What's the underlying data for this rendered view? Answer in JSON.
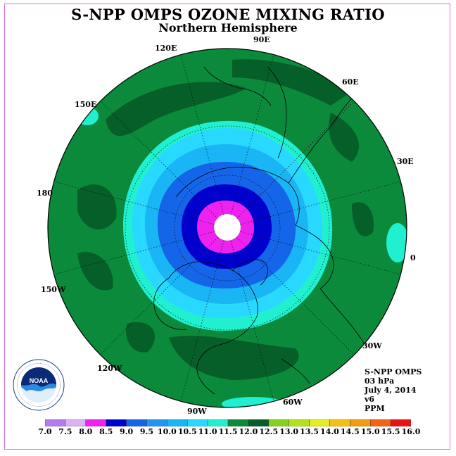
{
  "header": {
    "title": "S-NPP OMPS OZONE MIXING RATIO",
    "subtitle": "Northern Hemisphere"
  },
  "longitudes": [
    "90E",
    "60E",
    "30E",
    "0",
    "30W",
    "60W",
    "90W",
    "120W",
    "150W",
    "180",
    "150E",
    "120E"
  ],
  "info": {
    "instrument": "S-NPP OMPS",
    "level": "03 hPa",
    "date": "July 4, 2014",
    "version": "v6",
    "units": "PPM"
  },
  "logo": {
    "icon": "noaa-logo-icon",
    "text": "NOAA"
  },
  "colorbar": {
    "labels": [
      "7.0",
      "7.5",
      "8.0",
      "8.5",
      "9.0",
      "9.5",
      "10.0",
      "10.5",
      "11.0",
      "11.5",
      "12.0",
      "12.5",
      "13.0",
      "13.5",
      "14.0",
      "14.5",
      "15.0",
      "15.5",
      "16.0"
    ],
    "colors": [
      "#b57cf0",
      "#dcb0f2",
      "#ee22ee",
      "#0000cc",
      "#1565e8",
      "#2195f0",
      "#19b5f5",
      "#29d8ff",
      "#20f0d0",
      "#0c8a3c",
      "#065e28",
      "#88d020",
      "#b5e020",
      "#e6ec22",
      "#f2c012",
      "#f29a12",
      "#f06414",
      "#e81414",
      "#8b4e32"
    ]
  }
}
